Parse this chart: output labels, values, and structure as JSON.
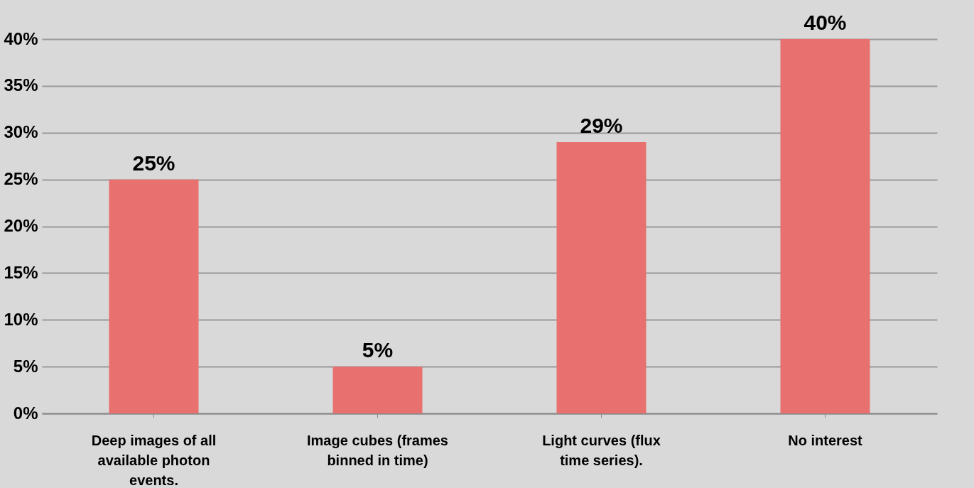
{
  "chart_data": {
    "type": "bar",
    "categories": [
      "Deep images of all available photon events.",
      "Image cubes (frames binned in time)",
      "Light curves (flux time series).",
      "No interest"
    ],
    "values": [
      25,
      5,
      29,
      40
    ],
    "color": "#e8706e",
    "ylim": [
      0,
      40
    ],
    "yticks": [
      {
        "value": 0,
        "label": "0%"
      },
      {
        "value": 5,
        "label": "5%"
      },
      {
        "value": 10,
        "label": "10%"
      },
      {
        "value": 15,
        "label": "15%"
      },
      {
        "value": 20,
        "label": "20%"
      },
      {
        "value": 25,
        "label": "25%"
      },
      {
        "value": 30,
        "label": "30%"
      },
      {
        "value": 35,
        "label": "35%"
      },
      {
        "value": 40,
        "label": "40%"
      }
    ],
    "value_labels": [
      "25%",
      "5%",
      "29%",
      "40%"
    ],
    "grid": "y"
  }
}
